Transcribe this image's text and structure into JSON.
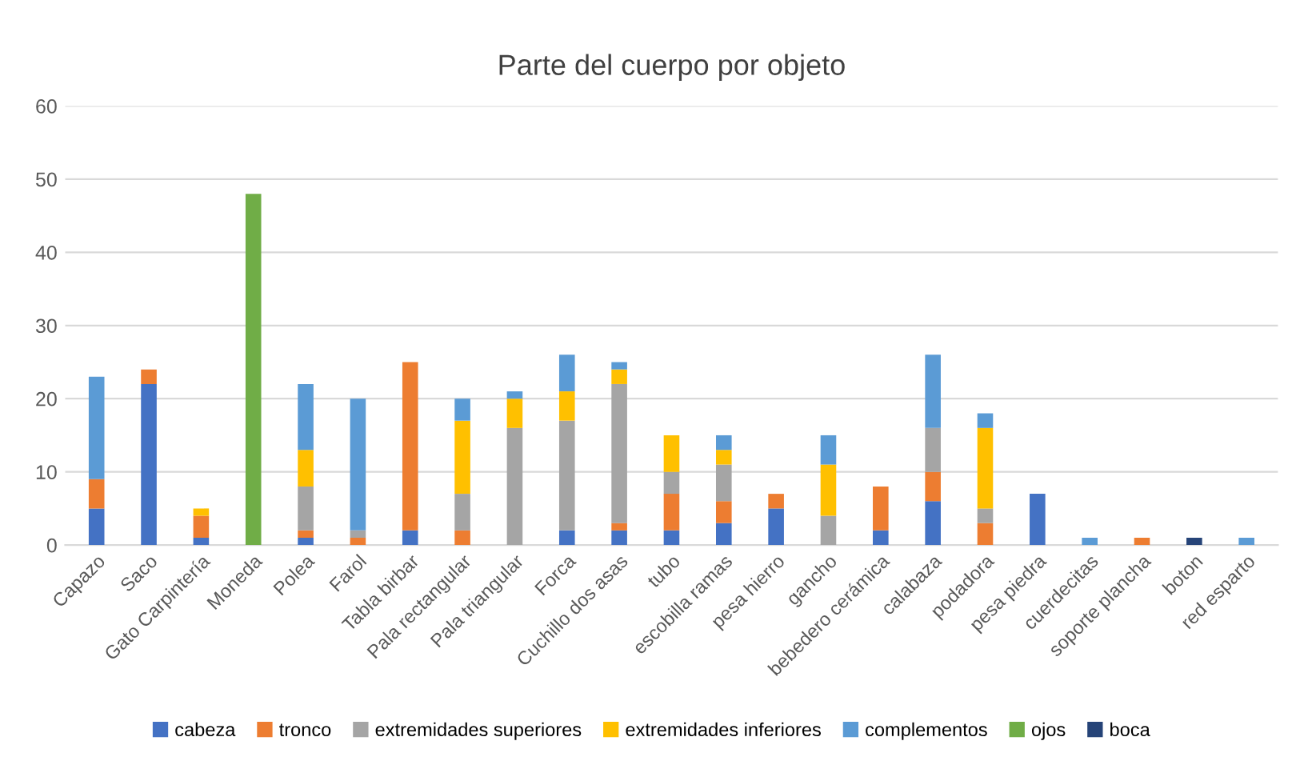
{
  "chart_data": {
    "type": "bar",
    "title": "Parte del cuerpo por objeto",
    "stacked": true,
    "grid": "y",
    "legend": "bottom",
    "categories": [
      "Capazo",
      "Saco",
      "Gato Carpintería",
      "Moneda",
      "Polea",
      "Farol",
      "Tabla birbar",
      "Pala rectangular",
      "Pala triangular",
      "Forca",
      "Cuchillo dos asas",
      "tubo",
      "escobilla ramas",
      "pesa hierro",
      "gancho",
      "bebedero cerámica",
      "calabaza",
      "podadora",
      "pesa piedra",
      "cuerdecitas",
      "soporte plancha",
      "boton",
      "red esparto"
    ],
    "ylim": [
      0,
      60
    ],
    "yticks": [
      0,
      10,
      20,
      30,
      40,
      50,
      60
    ],
    "series": [
      {
        "name": "cabeza",
        "color": "#4472c4",
        "values": [
          5,
          22,
          1,
          null,
          1,
          null,
          2,
          null,
          null,
          2,
          2,
          2,
          3,
          5,
          null,
          2,
          6,
          null,
          7,
          null,
          null,
          null,
          null
        ]
      },
      {
        "name": "tronco",
        "color": "#ed7d31",
        "values": [
          4,
          2,
          3,
          null,
          1,
          1,
          23,
          2,
          null,
          null,
          1,
          5,
          3,
          2,
          null,
          6,
          4,
          3,
          null,
          null,
          1,
          null,
          null
        ]
      },
      {
        "name": "extremidades superiores",
        "color": "#a5a5a5",
        "values": [
          null,
          null,
          null,
          null,
          6,
          1,
          null,
          5,
          16,
          15,
          19,
          3,
          5,
          null,
          4,
          null,
          6,
          2,
          null,
          null,
          null,
          null,
          null
        ]
      },
      {
        "name": "extremidades inferiores",
        "color": "#ffc000",
        "values": [
          null,
          null,
          1,
          null,
          5,
          null,
          null,
          10,
          4,
          4,
          2,
          5,
          2,
          null,
          7,
          null,
          null,
          11,
          null,
          null,
          null,
          null,
          null
        ]
      },
      {
        "name": "complementos",
        "color": "#5b9bd5",
        "values": [
          14,
          null,
          null,
          null,
          9,
          18,
          null,
          3,
          1,
          5,
          1,
          null,
          2,
          null,
          4,
          null,
          10,
          2,
          null,
          1,
          null,
          null,
          1
        ]
      },
      {
        "name": "ojos",
        "color": "#70ad47",
        "values": [
          null,
          null,
          null,
          48,
          null,
          null,
          null,
          null,
          null,
          null,
          null,
          null,
          null,
          null,
          null,
          null,
          null,
          null,
          null,
          null,
          null,
          null,
          null
        ]
      },
      {
        "name": "boca",
        "color": "#264478",
        "values": [
          null,
          null,
          null,
          null,
          null,
          null,
          null,
          null,
          null,
          null,
          null,
          null,
          null,
          null,
          null,
          null,
          null,
          null,
          null,
          null,
          null,
          1,
          null
        ]
      }
    ]
  }
}
